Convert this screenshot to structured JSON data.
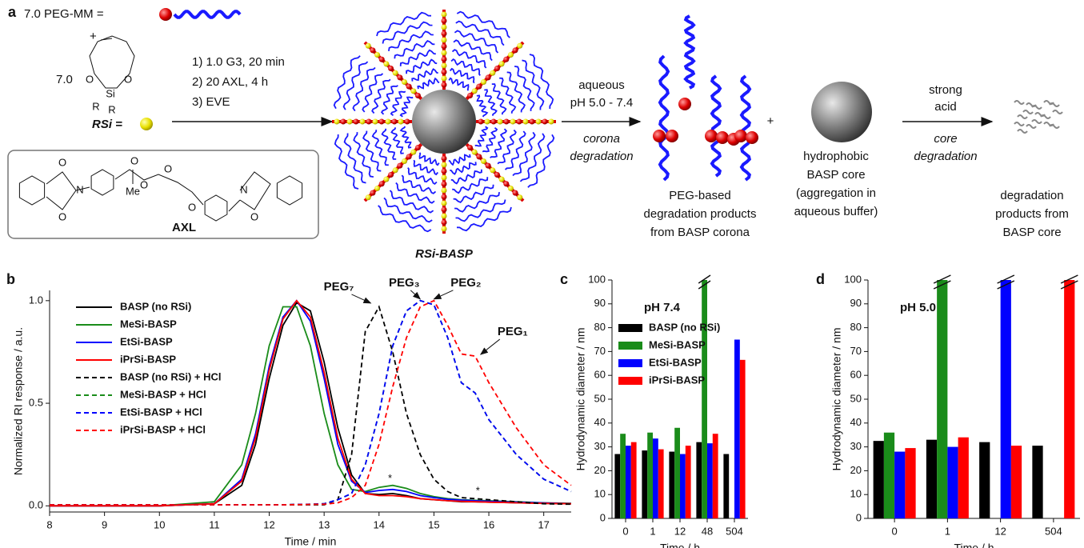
{
  "panel_a": {
    "label": "a",
    "peg_mm": "7.0 PEG-MM =",
    "plus1": "+",
    "monomer_equiv": "7.0",
    "monomer_atoms": [
      "O",
      "Si",
      "O",
      "R",
      "R"
    ],
    "rsi": "RSi =",
    "conditions": [
      "1) 1.0 G3, 20 min",
      "2) 20 AXL, 4 h",
      "3) EVE"
    ],
    "axl_atoms": [
      "O",
      "N",
      "O",
      "O",
      "O",
      "Me",
      "O",
      "O",
      "N",
      "O"
    ],
    "axl": "AXL",
    "product": "RSi-BASP",
    "step1_above": [
      "aqueous",
      "pH 5.0 - 7.4"
    ],
    "step1_below": [
      "corona",
      "degradation"
    ],
    "plus2": "+",
    "step2_above": [
      "strong",
      "acid"
    ],
    "step2_below": [
      "core",
      "degradation"
    ],
    "captions": [
      [
        "PEG-based",
        "degradation products",
        "from BASP corona"
      ],
      [
        "hydrophobic",
        "BASP core",
        "(aggregation in",
        "aqueous buffer)"
      ],
      [
        "degradation",
        "products from",
        "BASP core"
      ]
    ]
  },
  "chart_data": [
    {
      "label": "b",
      "type": "line",
      "x": [
        8,
        9,
        10,
        11,
        11.5,
        11.75,
        12,
        12.25,
        12.5,
        12.75,
        13,
        13.25,
        13.5,
        13.75,
        14,
        14.25,
        14.5,
        14.75,
        15,
        15.25,
        15.5,
        15.75,
        16,
        16.5,
        17,
        17.5
      ],
      "xlim": [
        8,
        17.5
      ],
      "xticks": [
        8,
        9,
        10,
        11,
        12,
        13,
        14,
        15,
        16,
        17
      ],
      "ylim": [
        -0.03,
        1.05
      ],
      "yticks": [
        {
          "value": 0,
          "label": "0.0"
        },
        {
          "value": 0.5,
          "label": "0.5"
        },
        {
          "value": 1,
          "label": "1.0"
        }
      ],
      "xlabel": "Time / min",
      "ylabel": "Normalized RI response / a.u.",
      "legend": "upper left",
      "series": [
        {
          "name": "BASP (no RSi)",
          "color": "#000000",
          "dashed": false,
          "values": [
            0,
            0,
            0,
            0.01,
            0.1,
            0.3,
            0.62,
            0.88,
            0.99,
            0.95,
            0.7,
            0.38,
            0.15,
            0.06,
            0.055,
            0.06,
            0.05,
            0.035,
            0.03,
            0.025,
            0.02,
            0.02,
            0.018,
            0.015,
            0.012,
            0.01
          ]
        },
        {
          "name": "MeSi-BASP",
          "color": "#1a8c1a",
          "dashed": false,
          "values": [
            0,
            0,
            0,
            0.02,
            0.2,
            0.45,
            0.78,
            0.97,
            0.97,
            0.78,
            0.45,
            0.2,
            0.08,
            0.07,
            0.09,
            0.1,
            0.085,
            0.06,
            0.045,
            0.035,
            0.03,
            0.027,
            0.025,
            0.02,
            0.015,
            0.012
          ]
        },
        {
          "name": "EtSi-BASP",
          "color": "#0000ff",
          "dashed": false,
          "values": [
            0,
            0,
            0,
            0.01,
            0.13,
            0.35,
            0.68,
            0.92,
            1.0,
            0.9,
            0.62,
            0.3,
            0.12,
            0.065,
            0.075,
            0.08,
            0.07,
            0.05,
            0.04,
            0.032,
            0.028,
            0.025,
            0.022,
            0.018,
            0.014,
            0.011
          ]
        },
        {
          "name": "iPrSi-BASP",
          "color": "#ff0000",
          "dashed": false,
          "values": [
            0,
            0,
            0,
            0.01,
            0.12,
            0.33,
            0.66,
            0.91,
            1.0,
            0.92,
            0.65,
            0.33,
            0.13,
            0.06,
            0.05,
            0.05,
            0.045,
            0.035,
            0.03,
            0.025,
            0.022,
            0.02,
            0.018,
            0.015,
            0.012,
            0.01
          ]
        },
        {
          "name": "BASP (no RSi) + HCl",
          "color": "#000000",
          "dashed": true,
          "values": [
            0.005,
            0.005,
            0.005,
            0.005,
            0.005,
            0.005,
            0.005,
            0.005,
            0.005,
            0.005,
            0.005,
            0.03,
            0.25,
            0.85,
            0.97,
            0.75,
            0.45,
            0.25,
            0.13,
            0.07,
            0.04,
            0.035,
            0.03,
            0.02,
            0.01,
            0.008
          ]
        },
        {
          "name": "MeSi-BASP + HCl",
          "color": "#1a8c1a",
          "dashed": true,
          "values": [
            0.005,
            0.005,
            0.005,
            0.005,
            0.005,
            0.005,
            0.005,
            0.005,
            0.007,
            0.008,
            0.01,
            0.03,
            0.06,
            0.2,
            0.45,
            0.78,
            0.95,
            1.0,
            0.98,
            0.82,
            0.6,
            0.55,
            0.42,
            0.25,
            0.13,
            0.07
          ]
        },
        {
          "name": "EtSi-BASP + HCl",
          "color": "#0000ff",
          "dashed": true,
          "values": [
            0.005,
            0.005,
            0.005,
            0.005,
            0.005,
            0.005,
            0.005,
            0.005,
            0.007,
            0.008,
            0.01,
            0.03,
            0.06,
            0.2,
            0.45,
            0.78,
            0.95,
            1.0,
            0.98,
            0.82,
            0.6,
            0.55,
            0.42,
            0.25,
            0.13,
            0.07
          ]
        },
        {
          "name": "iPrSi-BASP + HCl",
          "color": "#ff0000",
          "dashed": true,
          "values": [
            0.005,
            0.005,
            0.005,
            0.005,
            0.005,
            0.005,
            0.005,
            0.005,
            0.006,
            0.007,
            0.008,
            0.015,
            0.04,
            0.1,
            0.3,
            0.58,
            0.82,
            0.97,
            1.0,
            0.88,
            0.74,
            0.73,
            0.6,
            0.38,
            0.2,
            0.1
          ]
        }
      ],
      "annotations": [
        {
          "text": "PEG₇",
          "x": 13.85,
          "y": 0.98
        },
        {
          "text": "PEG₃",
          "x": 14.75,
          "y": 1.0
        },
        {
          "text": "PEG₂",
          "x": 15.0,
          "y": 1.0
        },
        {
          "text": "PEG₁",
          "x": 15.85,
          "y": 0.73
        },
        {
          "text": "*",
          "x": 14.2,
          "y": 0.1
        },
        {
          "text": "*",
          "x": 15.8,
          "y": 0.04
        }
      ]
    },
    {
      "label": "c",
      "type": "bar",
      "title": "pH 7.4",
      "categories": [
        "0",
        "1",
        "12",
        "48",
        "504"
      ],
      "ylim": [
        0,
        100
      ],
      "yticks": [
        0,
        10,
        20,
        30,
        40,
        50,
        60,
        70,
        80,
        90,
        100
      ],
      "xlabel": "Time / h",
      "ylabel": "Hydrodynamic diameter / nm",
      "legend": "upper left",
      "series": [
        {
          "name": "BASP (no RSi)",
          "color": "#000000",
          "values": [
            27,
            28.5,
            28,
            32,
            27
          ]
        },
        {
          "name": "MeSi-BASP",
          "color": "#1a8c1a",
          "values": [
            35.5,
            36,
            38,
            100,
            null
          ]
        },
        {
          "name": "EtSi-BASP",
          "color": "#0000ff",
          "values": [
            30.5,
            33.5,
            27,
            31.5,
            75
          ]
        },
        {
          "name": "iPrSi-BASP",
          "color": "#ff0000",
          "values": [
            32,
            29,
            30.5,
            35.5,
            66.5
          ]
        }
      ]
    },
    {
      "label": "d",
      "type": "bar",
      "title": "pH 5.0",
      "categories": [
        "0",
        "1",
        "12",
        "504"
      ],
      "ylim": [
        0,
        100
      ],
      "yticks": [
        0,
        10,
        20,
        30,
        40,
        50,
        60,
        70,
        80,
        90,
        100
      ],
      "xlabel": "Time / h",
      "ylabel": "Hydrodynamic diameter / nm",
      "series": [
        {
          "color": "#000000",
          "values": [
            32.5,
            33,
            32,
            30.5
          ]
        },
        {
          "color": "#1a8c1a",
          "values": [
            36,
            100,
            null,
            null
          ]
        },
        {
          "color": "#0000ff",
          "values": [
            28,
            30,
            100,
            null
          ]
        },
        {
          "color": "#ff0000",
          "values": [
            29.5,
            34,
            30.5,
            100
          ]
        }
      ]
    }
  ]
}
